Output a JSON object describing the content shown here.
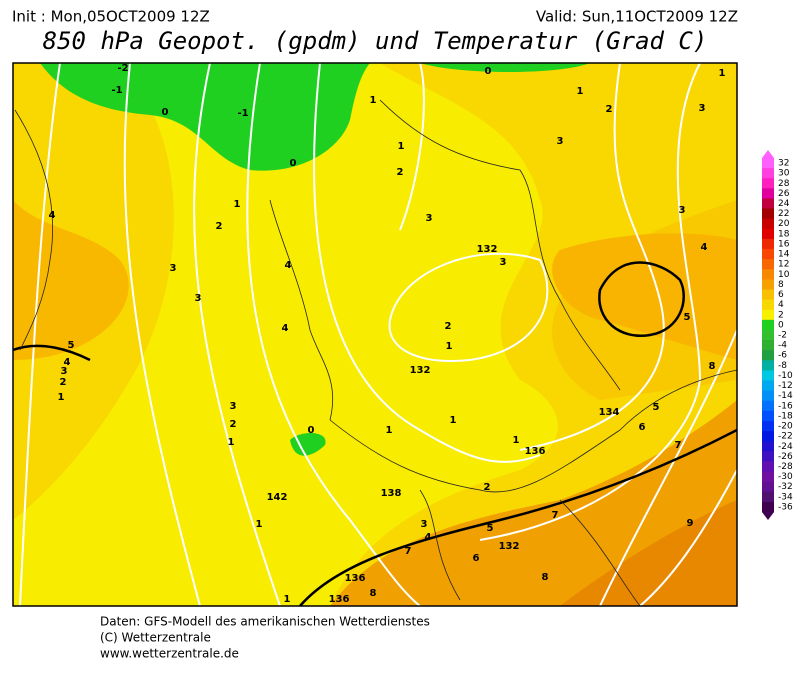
{
  "header": {
    "init": "Init : Mon,05OCT2009 12Z",
    "valid": "Valid: Sun,11OCT2009 12Z",
    "title": "850 hPa Geopot. (gpdm) und Temperatur (Grad C)"
  },
  "legend": {
    "levels": [
      32,
      30,
      28,
      26,
      24,
      22,
      20,
      18,
      16,
      14,
      12,
      10,
      8,
      6,
      4,
      2,
      0,
      -2,
      -4,
      -6,
      -8,
      -10,
      -12,
      -14,
      -16,
      -18,
      -20,
      -22,
      -24,
      -26,
      -28,
      -30,
      -32,
      -34,
      -36
    ],
    "colors": [
      "#ff60ff",
      "#ff40e0",
      "#ff20c0",
      "#e000a0",
      "#c00040",
      "#a00000",
      "#c80000",
      "#e00000",
      "#f02800",
      "#f84800",
      "#f86800",
      "#f88800",
      "#f8a000",
      "#f8c000",
      "#f8d800",
      "#f8f000",
      "#20d020",
      "#30c030",
      "#30b030",
      "#20a040",
      "#00b0a0",
      "#00c8e0",
      "#00a8f0",
      "#0090f8",
      "#0070ff",
      "#0050ff",
      "#0030f0",
      "#0018e0",
      "#2010d0",
      "#4010c0",
      "#6010b0",
      "#7010a0",
      "#601090",
      "#501070",
      "#400050"
    ]
  },
  "map": {
    "contour_labels": [
      -2,
      -1,
      0,
      -1,
      0,
      0,
      1,
      2,
      3,
      1,
      1,
      1,
      2,
      3,
      3,
      4,
      1,
      2,
      4,
      3,
      3,
      4,
      4,
      3,
      132,
      3,
      2,
      1,
      132,
      5,
      4,
      3,
      2,
      1,
      5,
      8,
      3,
      2,
      1,
      0,
      1,
      1,
      134,
      5,
      6,
      7,
      1,
      136,
      2,
      138,
      142,
      1,
      3,
      4,
      5,
      7,
      9,
      7,
      6,
      132,
      8,
      136,
      8,
      136,
      1
    ]
  },
  "footer": {
    "line1": "Daten: GFS-Modell des amerikanischen Wetterdienstes",
    "line2": "(C) Wetterzentrale",
    "line3": "www.wetterzentrale.de"
  }
}
